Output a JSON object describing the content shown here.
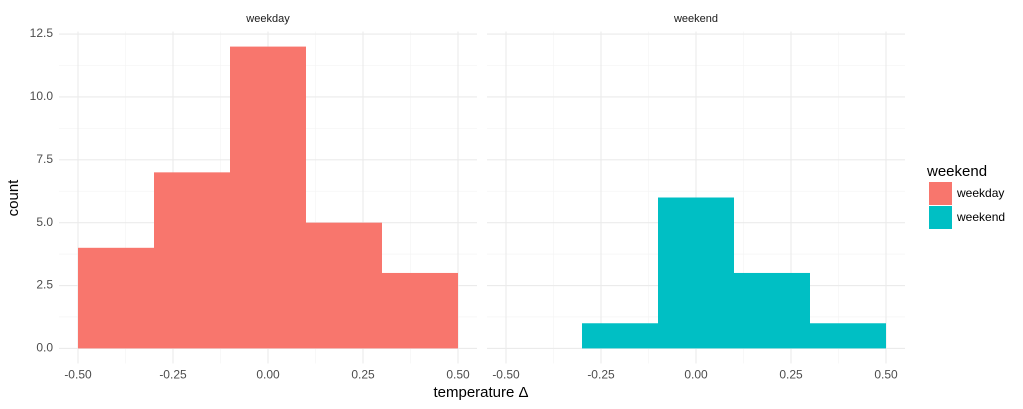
{
  "chart_data": {
    "type": "histogram",
    "x_label": "temperature Δ",
    "y_label": "count",
    "legend_title": "weekend",
    "bins": [
      -0.5,
      -0.3,
      -0.1,
      0.1,
      0.3,
      0.5
    ],
    "series": [
      {
        "name": "weekday",
        "color": "#f8766d",
        "values": [
          4,
          7,
          12,
          5,
          3
        ]
      },
      {
        "name": "weekend",
        "color": "#00bfc4",
        "values": [
          0,
          1,
          6,
          3,
          1
        ]
      }
    ],
    "xlim": [
      -0.55,
      0.55
    ],
    "ylim": [
      -0.6,
      12.6
    ],
    "xticks": [
      {
        "value": -0.5,
        "label": "-0.50"
      },
      {
        "value": -0.25,
        "label": "-0.25"
      },
      {
        "value": 0,
        "label": "0.00"
      },
      {
        "value": 0.25,
        "label": "0.25"
      },
      {
        "value": 0.5,
        "label": "0.50"
      }
    ],
    "yticks": [
      {
        "value": 0,
        "label": "0.0"
      },
      {
        "value": 2.5,
        "label": "2.5"
      },
      {
        "value": 5,
        "label": "5.0"
      },
      {
        "value": 7.5,
        "label": "7.5"
      },
      {
        "value": 10,
        "label": "10.0"
      },
      {
        "value": 12.5,
        "label": "12.5"
      }
    ],
    "grid": true
  }
}
